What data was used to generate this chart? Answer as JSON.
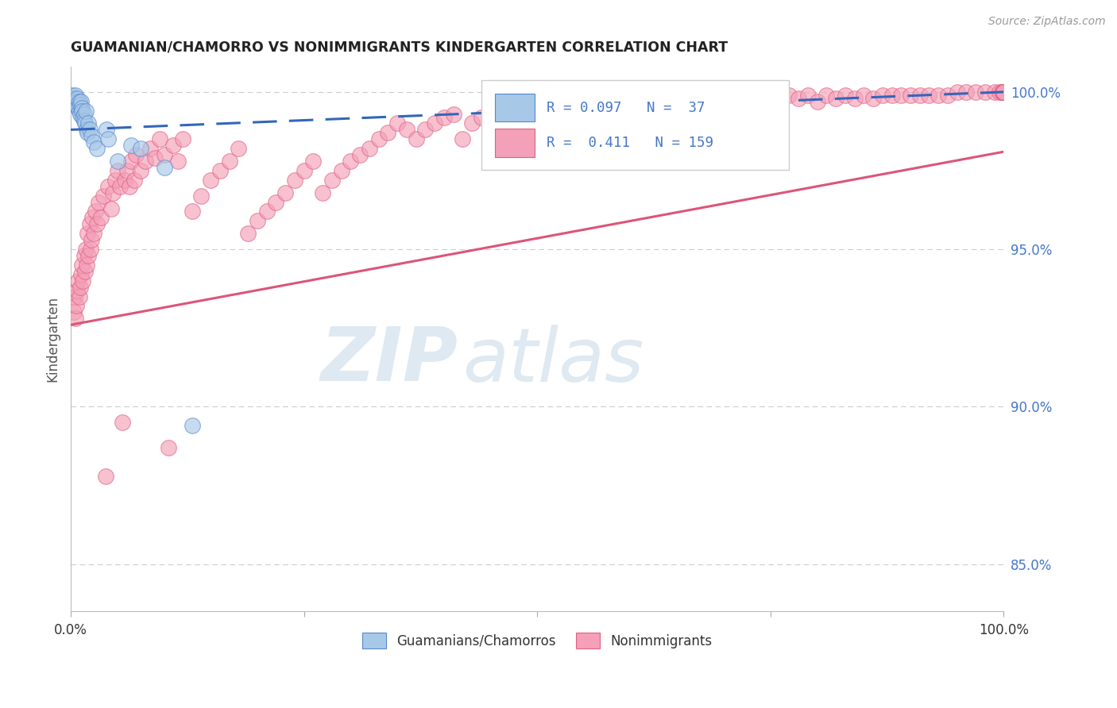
{
  "title": "GUAMANIAN/CHAMORRO VS NONIMMIGRANTS KINDERGARTEN CORRELATION CHART",
  "source": "Source: ZipAtlas.com",
  "ylabel": "Kindergarten",
  "right_yticks": [
    "85.0%",
    "90.0%",
    "95.0%",
    "100.0%"
  ],
  "right_ytick_vals": [
    0.85,
    0.9,
    0.95,
    1.0
  ],
  "legend_r1": "R = 0.097",
  "legend_n1": "N =  37",
  "legend_r2": "R =  0.411",
  "legend_n2": "N = 159",
  "legend_label1": "Guamanians/Chamorros",
  "legend_label2": "Nonimmigrants",
  "blue_fill": "#a8c8e8",
  "blue_edge": "#5588cc",
  "pink_fill": "#f4a0b8",
  "pink_edge": "#e06080",
  "blue_line_color": "#3366bb",
  "pink_line_color": "#dd5577",
  "xlim": [
    0.0,
    1.0
  ],
  "ylim": [
    0.835,
    1.008
  ],
  "blue_line": [
    0.0,
    0.988,
    1.0,
    1.0
  ],
  "pink_line": [
    0.0,
    0.926,
    1.0,
    0.981
  ],
  "blue_scatter_x": [
    0.001,
    0.002,
    0.003,
    0.004,
    0.004,
    0.005,
    0.005,
    0.006,
    0.007,
    0.007,
    0.008,
    0.009,
    0.009,
    0.01,
    0.01,
    0.011,
    0.012,
    0.012,
    0.013,
    0.014,
    0.014,
    0.015,
    0.016,
    0.017,
    0.018,
    0.019,
    0.02,
    0.022,
    0.025,
    0.028,
    0.038,
    0.04,
    0.05,
    0.065,
    0.075,
    0.1,
    0.13
  ],
  "blue_scatter_y": [
    0.998,
    0.999,
    0.998,
    0.997,
    0.998,
    0.996,
    0.999,
    0.997,
    0.996,
    0.998,
    0.995,
    0.997,
    0.994,
    0.996,
    0.993,
    0.997,
    0.995,
    0.994,
    0.992,
    0.993,
    0.991,
    0.99,
    0.994,
    0.988,
    0.987,
    0.99,
    0.988,
    0.986,
    0.984,
    0.982,
    0.988,
    0.985,
    0.978,
    0.983,
    0.982,
    0.976,
    0.894
  ],
  "pink_scatter_x": [
    0.003,
    0.004,
    0.005,
    0.006,
    0.007,
    0.008,
    0.009,
    0.01,
    0.011,
    0.012,
    0.013,
    0.014,
    0.015,
    0.016,
    0.017,
    0.018,
    0.019,
    0.02,
    0.021,
    0.022,
    0.023,
    0.025,
    0.026,
    0.028,
    0.03,
    0.032,
    0.035,
    0.037,
    0.04,
    0.043,
    0.045,
    0.048,
    0.05,
    0.053,
    0.055,
    0.058,
    0.06,
    0.063,
    0.065,
    0.068,
    0.07,
    0.075,
    0.08,
    0.085,
    0.09,
    0.095,
    0.1,
    0.105,
    0.11,
    0.115,
    0.12,
    0.13,
    0.14,
    0.15,
    0.16,
    0.17,
    0.18,
    0.19,
    0.2,
    0.21,
    0.22,
    0.23,
    0.24,
    0.25,
    0.26,
    0.27,
    0.28,
    0.29,
    0.3,
    0.31,
    0.32,
    0.33,
    0.34,
    0.35,
    0.36,
    0.37,
    0.38,
    0.39,
    0.4,
    0.41,
    0.42,
    0.43,
    0.44,
    0.45,
    0.46,
    0.47,
    0.48,
    0.49,
    0.5,
    0.51,
    0.52,
    0.53,
    0.54,
    0.55,
    0.56,
    0.57,
    0.58,
    0.59,
    0.6,
    0.61,
    0.62,
    0.63,
    0.64,
    0.65,
    0.66,
    0.67,
    0.68,
    0.69,
    0.7,
    0.71,
    0.72,
    0.73,
    0.74,
    0.75,
    0.76,
    0.77,
    0.78,
    0.79,
    0.8,
    0.81,
    0.82,
    0.83,
    0.84,
    0.85,
    0.86,
    0.87,
    0.88,
    0.89,
    0.9,
    0.91,
    0.92,
    0.93,
    0.94,
    0.95,
    0.96,
    0.97,
    0.98,
    0.99,
    0.995,
    0.998,
    1.0,
    1.0,
    1.0,
    1.0,
    1.0,
    1.0,
    1.0,
    1.0,
    1.0,
    1.0,
    1.0,
    1.0,
    1.0,
    1.0,
    1.0,
    1.0,
    1.0,
    1.0,
    1.0
  ],
  "pink_scatter_y": [
    0.93,
    0.935,
    0.928,
    0.932,
    0.937,
    0.94,
    0.935,
    0.938,
    0.942,
    0.945,
    0.94,
    0.948,
    0.943,
    0.95,
    0.945,
    0.955,
    0.948,
    0.958,
    0.95,
    0.953,
    0.96,
    0.955,
    0.962,
    0.958,
    0.965,
    0.96,
    0.967,
    0.878,
    0.97,
    0.963,
    0.968,
    0.972,
    0.975,
    0.97,
    0.895,
    0.972,
    0.975,
    0.97,
    0.978,
    0.972,
    0.98,
    0.975,
    0.978,
    0.982,
    0.979,
    0.985,
    0.98,
    0.887,
    0.983,
    0.978,
    0.985,
    0.962,
    0.967,
    0.972,
    0.975,
    0.978,
    0.982,
    0.955,
    0.959,
    0.962,
    0.965,
    0.968,
    0.972,
    0.975,
    0.978,
    0.968,
    0.972,
    0.975,
    0.978,
    0.98,
    0.982,
    0.985,
    0.987,
    0.99,
    0.988,
    0.985,
    0.988,
    0.99,
    0.992,
    0.993,
    0.985,
    0.99,
    0.992,
    0.993,
    0.99,
    0.992,
    0.994,
    0.988,
    0.992,
    0.994,
    0.996,
    0.99,
    0.993,
    0.987,
    0.993,
    0.99,
    0.994,
    0.988,
    0.993,
    0.996,
    0.993,
    0.996,
    0.994,
    0.997,
    0.995,
    0.998,
    0.996,
    0.998,
    0.994,
    0.997,
    0.996,
    0.998,
    0.997,
    0.998,
    0.997,
    0.999,
    0.998,
    0.999,
    0.997,
    0.999,
    0.998,
    0.999,
    0.998,
    0.999,
    0.998,
    0.999,
    0.999,
    0.999,
    0.999,
    0.999,
    0.999,
    0.999,
    0.999,
    1.0,
    1.0,
    1.0,
    1.0,
    1.0,
    1.0,
    1.0,
    1.0,
    1.0,
    1.0,
    1.0,
    1.0,
    1.0,
    1.0,
    1.0,
    1.0,
    1.0,
    1.0,
    1.0,
    1.0,
    1.0,
    1.0,
    1.0,
    1.0,
    1.0,
    1.0
  ],
  "background_color": "#ffffff",
  "grid_color": "#cccccc",
  "title_color": "#222222",
  "right_axis_color": "#4477cc",
  "legend_text_color": "#4477cc",
  "watermark_color": "#dde8f0"
}
